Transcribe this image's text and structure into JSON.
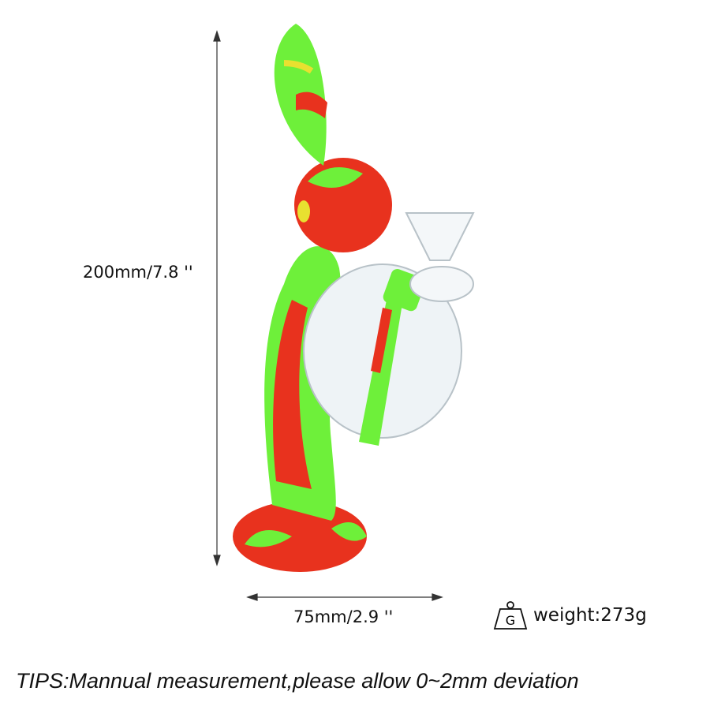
{
  "dimensions": {
    "height_label": "200mm/7.8 ''",
    "width_label": "75mm/2.9 ''"
  },
  "weight": {
    "icon": "weight-icon",
    "icon_letter": "G",
    "label": "weight:273g"
  },
  "tips": "TIPS:Mannual measurement,please allow 0~2mm deviation",
  "colors": {
    "green": "#6ef03a",
    "red": "#e8321e",
    "yellow": "#e8e030"
  }
}
